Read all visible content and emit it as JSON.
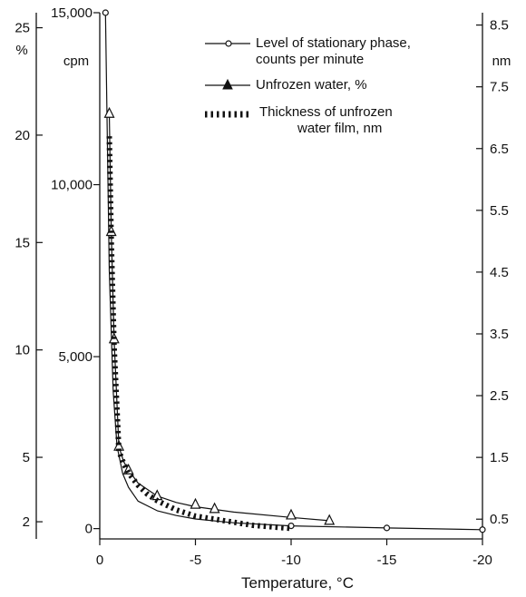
{
  "chart_data": {
    "type": "line",
    "x_axis": {
      "label": "Temperature, °C",
      "range": [
        0,
        -20
      ],
      "ticks": [
        0,
        -5,
        -10,
        -15,
        -20
      ],
      "tick_labels": [
        "0",
        "-5",
        "-10",
        "-15",
        "-20"
      ]
    },
    "y_axes": {
      "percent": {
        "unit_label": "%",
        "range": [
          1.2,
          25.7
        ],
        "ticks": [
          2,
          5,
          10,
          15,
          20,
          25
        ],
        "tick_labels": [
          "2",
          "5",
          "10",
          "15",
          "20",
          "25"
        ]
      },
      "cpm": {
        "unit_label": "cpm",
        "range": [
          -300,
          15000
        ],
        "ticks": [
          0,
          5000,
          10000,
          15000
        ],
        "tick_labels": [
          "0",
          "5,000",
          "10,000",
          "15,000"
        ]
      },
      "nm": {
        "unit_label": "nm",
        "range": [
          0.18,
          8.7
        ],
        "ticks": [
          0.5,
          1.5,
          2.5,
          3.5,
          4.5,
          5.5,
          6.5,
          7.5,
          8.5
        ],
        "tick_labels": [
          "0.5",
          "1.5",
          "2.5",
          "3.5",
          "4.5",
          "5.5",
          "6.5",
          "7.5",
          "8.5"
        ]
      }
    },
    "series": [
      {
        "name": "Level of stationary phase, counts per minute",
        "legend_lines": [
          "Level of stationary phase,",
          "counts per minute"
        ],
        "axis": "cpm",
        "marker": "open-circle",
        "line": "solid",
        "x": [
          -0.3,
          -0.5,
          -0.7,
          -0.9,
          -1.2,
          -1.5,
          -2,
          -3,
          -4,
          -5,
          -7,
          -10,
          -15,
          -20
        ],
        "y": [
          15000,
          7500,
          4000,
          2400,
          1600,
          1200,
          800,
          520,
          380,
          280,
          170,
          80,
          20,
          -30
        ],
        "marker_points": {
          "x": [
            -0.3,
            -10,
            -15,
            -20
          ],
          "y": [
            15000,
            80,
            20,
            -30
          ]
        }
      },
      {
        "name": "Unfrozen water, %",
        "legend_lines": [
          "Unfrozen water, %"
        ],
        "axis": "percent",
        "marker": "open-triangle",
        "line": "solid",
        "x": [
          -0.5,
          -0.6,
          -0.75,
          -1,
          -1.25,
          -1.5,
          -2,
          -3,
          -4,
          -5,
          -7,
          -10,
          -12
        ],
        "y": [
          21,
          15.5,
          10.5,
          5.5,
          4.8,
          4.4,
          3.8,
          3.2,
          2.9,
          2.7,
          2.45,
          2.2,
          2.05
        ],
        "marker_points": {
          "x": [
            -0.5,
            -0.6,
            -0.75,
            -1,
            -1.5,
            -3,
            -5,
            -6,
            -10,
            -12
          ],
          "y": [
            21,
            15.5,
            10.5,
            5.5,
            4.4,
            3.2,
            2.8,
            2.6,
            2.3,
            2.05
          ]
        }
      },
      {
        "name": "Thickness of unfrozen water film, nm",
        "legend_lines": [
          "Thickness of unfrozen",
          "water film, nm"
        ],
        "axis": "nm",
        "marker": "none",
        "line": "heavy-dotted",
        "x": [
          -0.5,
          -0.6,
          -0.75,
          -1,
          -1.25,
          -1.5,
          -2,
          -2.5,
          -3,
          -4,
          -5,
          -6,
          -8,
          -10
        ],
        "y": [
          6.7,
          5.0,
          3.3,
          1.6,
          1.4,
          1.25,
          1.05,
          0.9,
          0.8,
          0.65,
          0.55,
          0.5,
          0.4,
          0.35
        ]
      }
    ],
    "legend_position": "top-right",
    "grid": false
  }
}
